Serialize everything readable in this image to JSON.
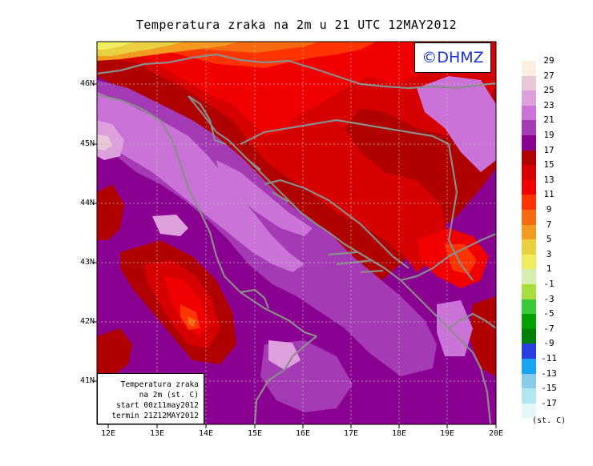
{
  "title": "Temperatura zraka na 2m u 21 UTC 12MAY2012",
  "logo_text": "©DHMZ",
  "info": {
    "line1": "Temperatura zraka",
    "line2": "na 2m (st. C)",
    "line3": "start 00z11may2012",
    "line4": "termin 21Z12MAY2012"
  },
  "lon_labels": [
    "12E",
    "13E",
    "14E",
    "15E",
    "16E",
    "17E",
    "18E",
    "19E",
    "20E"
  ],
  "lat_labels": [
    "46N",
    "45N",
    "44N",
    "43N",
    "42N",
    "41N"
  ],
  "legend": {
    "unit": "(st. C)",
    "levels": [
      "29",
      "27",
      "25",
      "23",
      "21",
      "19",
      "17",
      "15",
      "13",
      "11",
      "9",
      "7",
      "5",
      "3",
      "1",
      "-1",
      "-3",
      "-5",
      "-7",
      "-9",
      "-11",
      "-13",
      "-15",
      "-17"
    ],
    "colors": [
      "#fdeee0",
      "#e8c8d8",
      "#dda0dd",
      "#ca72d8",
      "#a53ab5",
      "#8a0090",
      "#b00000",
      "#d60000",
      "#f00000",
      "#ff3300",
      "#f66a10",
      "#f39a20",
      "#e8d040",
      "#f0ee60",
      "#d8eeb0",
      "#a8dd40",
      "#38c838",
      "#00a000",
      "#008000",
      "#2a3de0",
      "#18a4ee",
      "#88cce8",
      "#b0e6ee",
      "#e4f8fa",
      "#ffffff"
    ]
  },
  "coastline_color": "#8c8c8c"
}
